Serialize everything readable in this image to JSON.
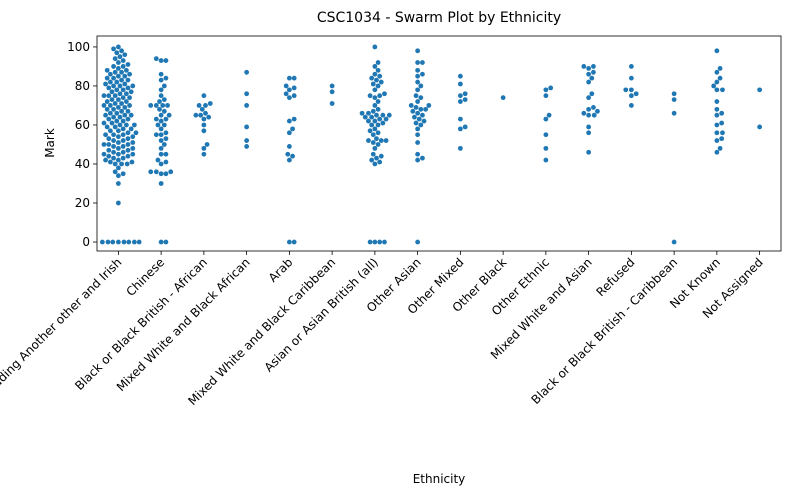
{
  "chart_data": {
    "type": "swarm",
    "title": "CSC1034 - Swarm Plot by Ethnicity",
    "x_label": "Ethnicity",
    "y_label": "Mark",
    "color": "#1f77b4",
    "ylim": [
      -4.6,
      105.6
    ],
    "yticks": [
      0,
      20,
      40,
      60,
      80,
      100
    ],
    "categories": [
      "White including Another other and Irish",
      "Chinese",
      "Black or Black British - African",
      "Mixed White and Black African",
      "Arab",
      "Mixed White and Black Caribbean",
      "Asian or Asian British (all)",
      "Other Asian",
      "Other Mixed",
      "Other Black",
      "Other Ethnic",
      "Mixed White and Asian",
      "Refused",
      "Black or Black British - Caribbean",
      "Not Known",
      "Not Assigned"
    ],
    "values": [
      [
        0,
        0,
        0,
        0,
        0,
        0,
        0,
        0,
        20,
        30,
        34,
        35,
        36,
        38,
        40,
        40,
        40,
        41,
        41,
        42,
        42,
        43,
        43,
        44,
        44,
        45,
        45,
        45,
        46,
        46,
        47,
        47,
        48,
        48,
        49,
        49,
        50,
        50,
        50,
        51,
        51,
        52,
        52,
        53,
        53,
        54,
        54,
        55,
        55,
        55,
        56,
        56,
        57,
        57,
        58,
        58,
        59,
        59,
        60,
        60,
        60,
        61,
        61,
        62,
        62,
        63,
        63,
        64,
        64,
        65,
        65,
        65,
        66,
        66,
        67,
        67,
        68,
        68,
        69,
        69,
        70,
        70,
        70,
        71,
        71,
        72,
        72,
        73,
        73,
        74,
        74,
        75,
        75,
        75,
        76,
        76,
        77,
        77,
        78,
        78,
        79,
        79,
        80,
        80,
        80,
        81,
        81,
        82,
        82,
        83,
        83,
        84,
        84,
        85,
        85,
        86,
        86,
        87,
        87,
        88,
        88,
        89,
        90,
        90,
        91,
        92,
        93,
        94,
        95,
        96,
        97,
        98,
        99,
        100
      ],
      [
        0,
        0,
        30,
        35,
        35,
        36,
        36,
        36,
        40,
        41,
        42,
        45,
        45,
        48,
        50,
        52,
        53,
        55,
        55,
        56,
        58,
        60,
        60,
        62,
        63,
        63,
        65,
        65,
        67,
        68,
        70,
        70,
        70,
        70,
        72,
        73,
        75,
        78,
        80,
        83,
        84,
        86,
        93,
        93,
        94
      ],
      [
        45,
        48,
        50,
        57,
        60,
        63,
        64,
        65,
        65,
        66,
        68,
        70,
        70,
        71,
        75
      ],
      [
        49,
        52,
        59,
        70,
        76,
        87
      ],
      [
        0,
        0,
        42,
        44,
        45,
        49,
        56,
        58,
        62,
        63,
        74,
        75,
        76,
        78,
        79,
        80,
        84,
        84
      ],
      [
        71,
        77,
        80
      ],
      [
        0,
        0,
        0,
        0,
        40,
        41,
        42,
        43,
        44,
        45,
        48,
        50,
        51,
        52,
        52,
        52,
        53,
        55,
        56,
        57,
        58,
        60,
        60,
        61,
        62,
        62,
        63,
        63,
        64,
        64,
        65,
        65,
        65,
        66,
        66,
        67,
        68,
        70,
        72,
        74,
        75,
        75,
        76,
        78,
        80,
        81,
        82,
        83,
        84,
        85,
        86,
        88,
        90,
        92,
        100
      ],
      [
        0,
        42,
        43,
        45,
        51,
        55,
        58,
        60,
        61,
        62,
        63,
        64,
        65,
        66,
        67,
        68,
        68,
        69,
        70,
        70,
        72,
        74,
        75,
        78,
        80,
        82,
        85,
        86,
        88,
        92,
        92,
        98
      ],
      [
        48,
        58,
        59,
        63,
        72,
        73,
        75,
        76,
        81,
        85
      ],
      [
        74
      ],
      [
        42,
        48,
        55,
        63,
        65,
        75,
        78,
        79
      ],
      [
        46,
        56,
        59,
        65,
        65,
        66,
        67,
        68,
        69,
        74,
        76,
        82,
        84,
        86,
        87,
        89,
        90,
        90
      ],
      [
        70,
        75,
        76,
        78,
        78,
        84,
        90
      ],
      [
        0,
        66,
        73,
        76
      ],
      [
        46,
        48,
        52,
        53,
        56,
        56,
        60,
        61,
        65,
        66,
        68,
        72,
        78,
        78,
        80,
        82,
        84,
        87,
        89,
        98
      ],
      [
        59,
        78
      ]
    ]
  }
}
